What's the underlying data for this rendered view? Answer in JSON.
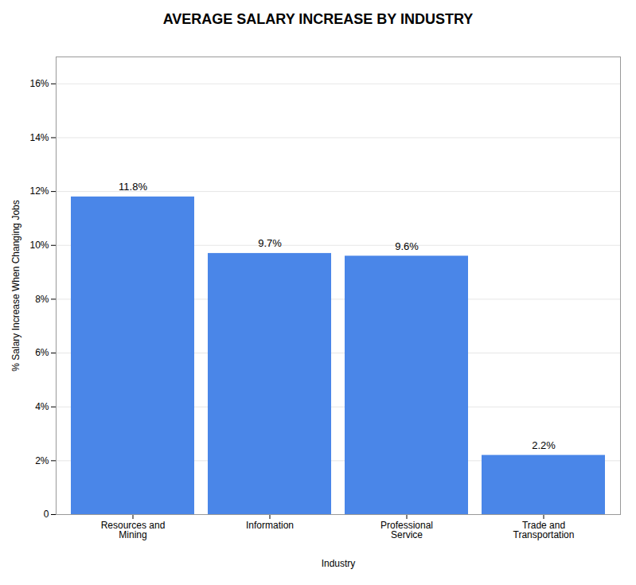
{
  "chart_data": {
    "type": "bar",
    "title": "AVERAGE SALARY INCREASE BY INDUSTRY",
    "categories": [
      "Resources and\nMining",
      "Information",
      "Professional\nService",
      "Trade and\nTransportation"
    ],
    "values": [
      11.8,
      9.7,
      9.6,
      2.2
    ],
    "value_labels": [
      "11.8%",
      "9.7%",
      "9.6%",
      "2.2%"
    ],
    "color": "#4a86e8",
    "xlabel": "Industry",
    "ylabel": "% Salary Increase When Changing Jobs",
    "ylim": [
      0,
      17
    ],
    "yticks": [
      0,
      {
        "value": 2,
        "label": "2%"
      },
      {
        "value": 4,
        "label": "4%"
      },
      {
        "value": 6,
        "label": "6%"
      },
      {
        "value": 8,
        "label": "8%"
      },
      {
        "value": 10,
        "label": "10%"
      },
      {
        "value": 12,
        "label": "12%"
      },
      {
        "value": 14,
        "label": "14%"
      },
      {
        "value": 16,
        "label": "16%"
      }
    ],
    "grid": true,
    "data_labels": true
  }
}
